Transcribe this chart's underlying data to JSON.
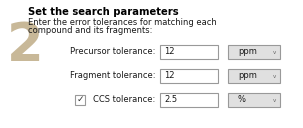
{
  "bg_color": "#f2f2f2",
  "step_number": "2",
  "step_color": "#c0b090",
  "title": "Set the search parameters",
  "subtitle_line1": "Enter the error tolerances for matching each",
  "subtitle_line2": "compound and its fragments:",
  "rows": [
    {
      "label": "Precursor tolerance:",
      "value": "12",
      "unit": "ppm",
      "checkbox": false
    },
    {
      "label": "Fragment tolerance:",
      "value": "12",
      "unit": "ppm",
      "checkbox": false
    },
    {
      "label": "CCS tolerance:",
      "value": "2.5",
      "unit": "%",
      "checkbox": true
    }
  ],
  "title_fontsize": 7.2,
  "body_fontsize": 6.0,
  "label_fontsize": 6.0,
  "value_fontsize": 6.0,
  "box_bg": "#ffffff",
  "unit_bg": "#e0e0e0",
  "border_color": "#999999",
  "text_color": "#1a1a1a",
  "title_color": "#000000",
  "step_font_color": "#b0a080",
  "white_panel": "#ffffff"
}
